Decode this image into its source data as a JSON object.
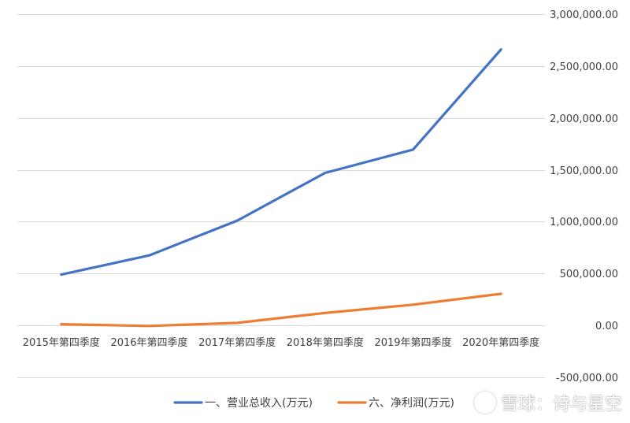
{
  "chart_data": {
    "type": "line",
    "categories": [
      "2015年第四季度",
      "2016年第四季度",
      "2017年第四季度",
      "2018年第四季度",
      "2019年第四季度",
      "2020年第四季度"
    ],
    "series": [
      {
        "name": "一、营业总收入(万元)",
        "color": "#4472c4",
        "values": [
          490000,
          675000,
          1010000,
          1470000,
          1695000,
          2660000
        ]
      },
      {
        "name": "六、净利润(万元)",
        "color": "#ed7d31",
        "values": [
          12000,
          -5000,
          25000,
          120000,
          200000,
          305000
        ]
      }
    ],
    "ylim": [
      -500000,
      3000000
    ],
    "yticks": [
      3000000,
      2500000,
      2000000,
      1500000,
      1000000,
      500000,
      0,
      -500000
    ],
    "ytick_labels": [
      "3,000,000.00",
      "2,500,000.00",
      "2,000,000.00",
      "1,500,000.00",
      "1,000,000.00",
      "500,000.00",
      "0.00",
      "-500,000.00"
    ],
    "y_axis_side": "right",
    "grid": true,
    "legend_position": "bottom",
    "title": "",
    "xlabel": "",
    "ylabel": ""
  },
  "watermark": {
    "text": "雪球：诗与星空"
  }
}
